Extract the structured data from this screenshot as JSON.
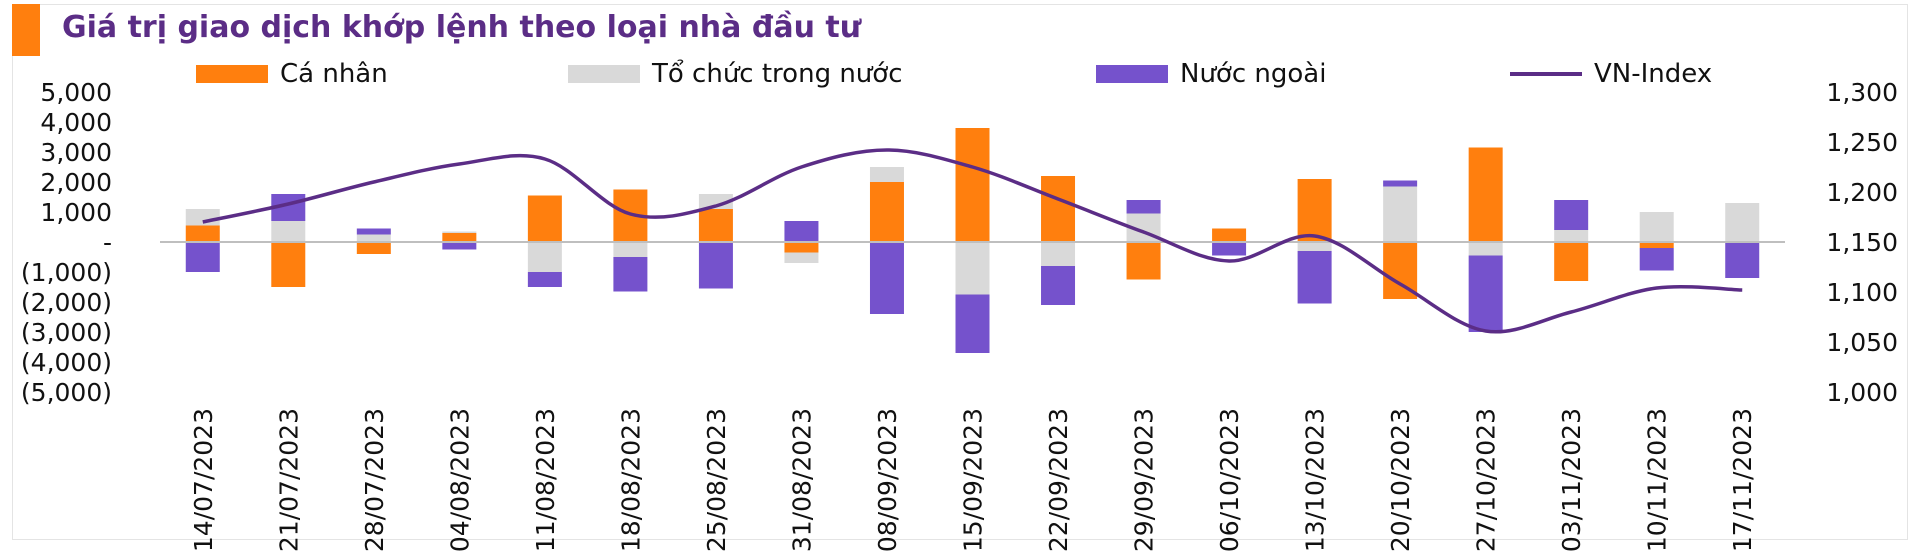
{
  "title": "Giá trị giao dịch khớp lệnh theo loại nhà đầu tư",
  "colors": {
    "ca_nhan": "#ff7f0e",
    "to_chuc": "#d9d9d9",
    "nuoc_ngoai": "#7552cc",
    "vn_index": "#5b2d86",
    "title_accent": "#ff7f0e",
    "title_text": "#5b2d86"
  },
  "chart_data": {
    "type": "bar",
    "stacked": true,
    "title": "Giá trị giao dịch khớp lệnh theo loại nhà đầu tư",
    "categories": [
      "14/07/2023",
      "21/07/2023",
      "28/07/2023",
      "04/08/2023",
      "11/08/2023",
      "18/08/2023",
      "25/08/2023",
      "31/08/2023",
      "08/09/2023",
      "15/09/2023",
      "22/09/2023",
      "29/09/2023",
      "06/10/2023",
      "13/10/2023",
      "20/10/2023",
      "27/10/2023",
      "03/11/2023",
      "10/11/2023",
      "17/11/2023"
    ],
    "series": [
      {
        "name": "Cá nhân",
        "color": "#ff7f0e",
        "values": [
          550,
          -1500,
          -400,
          300,
          1550,
          1750,
          1100,
          -350,
          2000,
          3800,
          2200,
          -1250,
          450,
          2100,
          -1900,
          3150,
          -1300,
          -200,
          0
        ]
      },
      {
        "name": "Tổ chức trong nước",
        "color": "#d9d9d9",
        "values": [
          550,
          700,
          250,
          50,
          -1000,
          -500,
          500,
          -350,
          500,
          -1750,
          -800,
          950,
          0,
          -300,
          1850,
          -450,
          400,
          1000,
          1300
        ]
      },
      {
        "name": "Nước ngoài",
        "color": "#7552cc",
        "values": [
          -1000,
          900,
          200,
          -250,
          -500,
          -1150,
          -1550,
          700,
          -2400,
          -1950,
          -1300,
          450,
          -450,
          -1750,
          200,
          -2550,
          1000,
          -750,
          -1200
        ]
      }
    ],
    "line_series": {
      "name": "VN-Index",
      "color": "#5b2d86",
      "axis": "right",
      "values": [
        1170,
        1188,
        1210,
        1228,
        1233,
        1178,
        1186,
        1225,
        1242,
        1225,
        1193,
        1160,
        1131,
        1156,
        1108,
        1061,
        1080,
        1104,
        1102
      ]
    },
    "y_left": {
      "min": -5000,
      "max": 5000,
      "step": 1000,
      "ticks": [
        "5,000",
        "4,000",
        "3,000",
        "2,000",
        "1,000",
        "-",
        "(1,000)",
        "(2,000)",
        "(3,000)",
        "(4,000)",
        "(5,000)"
      ]
    },
    "y_right": {
      "min": 1000,
      "max": 1300,
      "step": 50,
      "ticks": [
        "1,300",
        "1,250",
        "1,200",
        "1,150",
        "1,100",
        "1,050",
        "1,000"
      ]
    },
    "grid": false,
    "legend": {
      "position": "top",
      "items": [
        "Cá nhân",
        "Tổ chức trong nước",
        "Nước ngoài",
        "VN-Index"
      ]
    }
  }
}
